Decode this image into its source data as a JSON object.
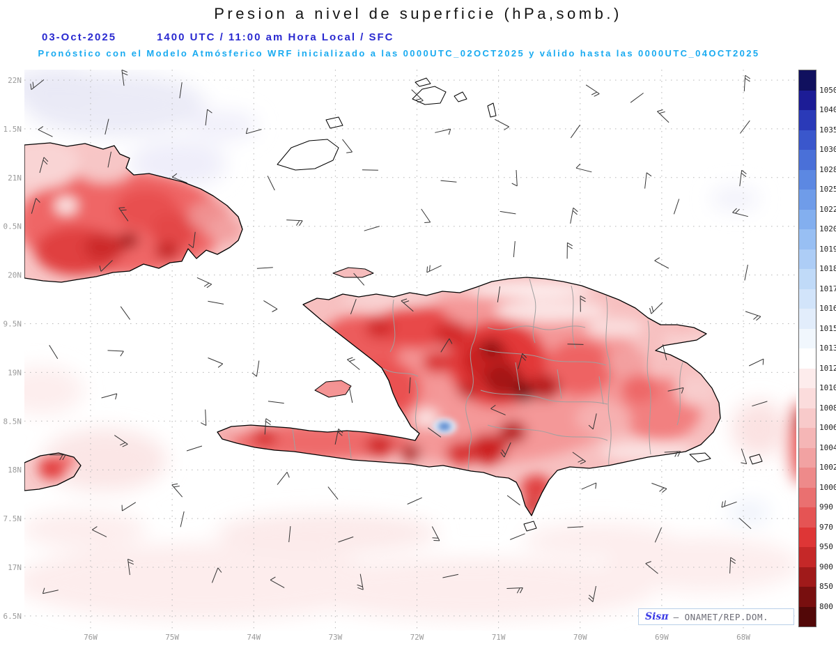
{
  "title": "Presion a nivel de superficie (hPa,somb.)",
  "header": {
    "date": "03-Oct-2025",
    "time_line": "1400 UTC / 11:00 am Hora Local / SFC",
    "forecast_line": "Pronóstico con el Modelo Atmósferico WRF inicializado a las 0000UTC_02OCT2025 y válido hasta las 0000UTC_04OCT2025"
  },
  "axes": {
    "lat_labels": [
      "22N",
      "1.5N",
      "21N",
      "0.5N",
      "20N",
      "9.5N",
      "19N",
      "8.5N",
      "18N",
      "7.5N",
      "17N",
      "6.5N"
    ],
    "lon_labels": [
      "76W",
      "75W",
      "74W",
      "73W",
      "72W",
      "71W",
      "70W",
      "69W",
      "68W"
    ]
  },
  "colorbar": {
    "unit": "hPa",
    "labels": [
      "1050",
      "1040",
      "1035",
      "1030",
      "1028",
      "1025",
      "1022",
      "1020",
      "1019",
      "1018",
      "1017",
      "1016",
      "1015",
      "1013",
      "1012",
      "1010",
      "1008",
      "1006",
      "1004",
      "1002",
      "1000",
      "990",
      "970",
      "950",
      "900",
      "850",
      "800"
    ],
    "colors": [
      "#10105e",
      "#1c1c96",
      "#2a3ab8",
      "#3a57cc",
      "#4a70d8",
      "#5c88e2",
      "#6f9ce9",
      "#83afef",
      "#98bff3",
      "#adcdf6",
      "#c0daf8",
      "#d2e4fa",
      "#e2edfb",
      "#f1f7fd",
      "#ffffff",
      "#fdecec",
      "#fbdcdc",
      "#f8caca",
      "#f5b6b6",
      "#f2a2a2",
      "#ee8a8a",
      "#ea7070",
      "#e55454",
      "#de3636",
      "#c52828",
      "#a01a1a",
      "#780f0f",
      "#520808"
    ]
  },
  "watermark": {
    "brand": "Sisπ",
    "text": "– ONAMET/REP.DOM."
  },
  "map_colors": {
    "low_pressure_shading": "#e04040",
    "high_pressure_shading": "#5b8bd0",
    "coastline": "#000000",
    "admin_borders": "#a0a0a0"
  }
}
